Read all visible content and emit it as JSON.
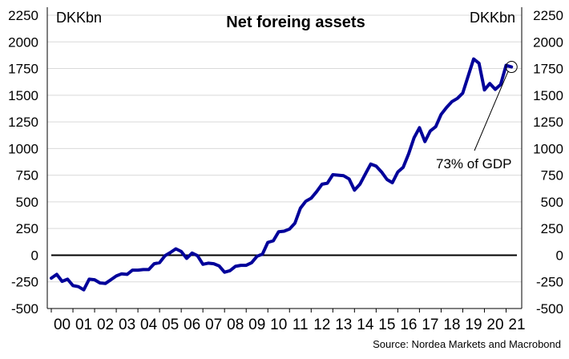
{
  "chart_data": {
    "type": "line",
    "title": "Net foreing assets",
    "unit_left": "DKKbn",
    "unit_right": "DKKbn",
    "ylim": [
      -500,
      2250
    ],
    "yticks": [
      2250,
      2000,
      1750,
      1500,
      1250,
      1000,
      750,
      500,
      250,
      0,
      -250,
      -500
    ],
    "xticks": [
      "00",
      "01",
      "02",
      "03",
      "04",
      "05",
      "06",
      "07",
      "08",
      "09",
      "10",
      "11",
      "12",
      "13",
      "14",
      "15",
      "16",
      "17",
      "18",
      "19",
      "20",
      "21"
    ],
    "xlim": [
      2000,
      2021.5
    ],
    "grid": true,
    "series": [
      {
        "color": "#00009a",
        "x": [
          2000.0,
          2000.25,
          2000.5,
          2000.75,
          2001.0,
          2001.25,
          2001.5,
          2001.75,
          2002.0,
          2002.25,
          2002.5,
          2002.75,
          2003.0,
          2003.25,
          2003.5,
          2003.75,
          2004.0,
          2004.25,
          2004.5,
          2004.75,
          2005.0,
          2005.25,
          2005.5,
          2005.75,
          2006.0,
          2006.25,
          2006.5,
          2006.75,
          2007.0,
          2007.25,
          2007.5,
          2007.75,
          2008.0,
          2008.25,
          2008.5,
          2008.75,
          2009.0,
          2009.25,
          2009.5,
          2009.75,
          2010.0,
          2010.25,
          2010.5,
          2010.75,
          2011.0,
          2011.25,
          2011.5,
          2011.75,
          2012.0,
          2012.25,
          2012.5,
          2012.75,
          2013.0,
          2013.25,
          2013.5,
          2013.75,
          2014.0,
          2014.25,
          2014.5,
          2014.75,
          2015.0,
          2015.25,
          2015.5,
          2015.75,
          2016.0,
          2016.25,
          2016.5,
          2016.75,
          2017.0,
          2017.25,
          2017.5,
          2017.75,
          2018.0,
          2018.25,
          2018.5,
          2018.75,
          2019.0,
          2019.25,
          2019.5,
          2019.75,
          2020.0,
          2020.25,
          2020.5,
          2020.75,
          2021.0,
          2021.25
        ],
        "values": [
          -215,
          -180,
          -245,
          -225,
          -285,
          -295,
          -325,
          -225,
          -230,
          -260,
          -265,
          -230,
          -195,
          -175,
          -180,
          -140,
          -140,
          -135,
          -135,
          -80,
          -70,
          -5,
          25,
          60,
          35,
          -30,
          20,
          -5,
          -85,
          -75,
          -80,
          -100,
          -160,
          -145,
          -105,
          -95,
          -95,
          -70,
          -10,
          10,
          120,
          135,
          220,
          225,
          245,
          300,
          440,
          505,
          535,
          595,
          665,
          675,
          755,
          750,
          745,
          715,
          610,
          665,
          760,
          855,
          835,
          780,
          710,
          680,
          780,
          825,
          950,
          1100,
          1195,
          1065,
          1165,
          1205,
          1320,
          1385,
          1440,
          1470,
          1520,
          1680,
          1840,
          1800,
          1550,
          1610,
          1555,
          1600,
          1780,
          1765
        ]
      }
    ],
    "annotations": [
      {
        "text": "73% of GDP",
        "x": 2021.25,
        "y": 1765
      }
    ]
  },
  "source": "Source: Nordea Markets and Macrobond"
}
